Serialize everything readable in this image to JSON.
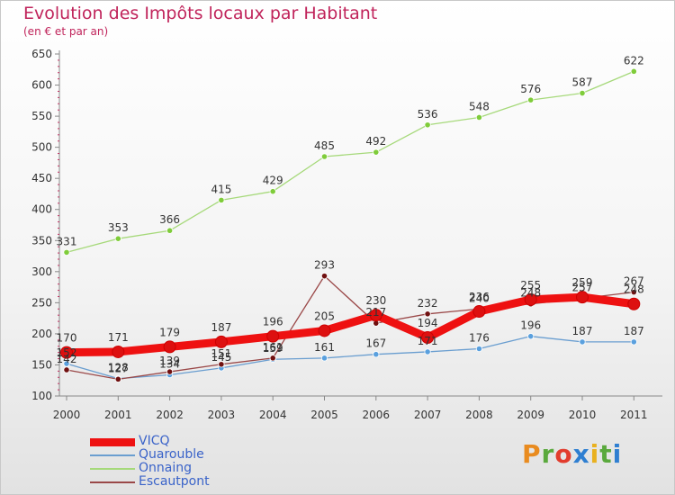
{
  "header": {
    "title": "Evolution des Impôts locaux par Habitant",
    "subtitle": "(en € et par an)"
  },
  "logo": {
    "text": "Proxiti",
    "letters": [
      "P",
      "r",
      "o",
      "x",
      "i",
      "t",
      "i"
    ],
    "colors": [
      "#e98b1f",
      "#5aa93d",
      "#e23c2d",
      "#2f7fd1",
      "#e9b11f",
      "#5aa93d",
      "#2f7fd1"
    ]
  },
  "chart_data": {
    "type": "line",
    "title": "Evolution des Impôts locaux par Habitant",
    "subtitle": "(en € et par an)",
    "xlabel": "",
    "ylabel": "",
    "x": [
      "2000",
      "2001",
      "2002",
      "2003",
      "2004",
      "2005",
      "2006",
      "2007",
      "2008",
      "2009",
      "2010",
      "2011"
    ],
    "ylim": [
      100,
      650
    ],
    "yticks": [
      100,
      150,
      200,
      250,
      300,
      350,
      400,
      450,
      500,
      550,
      600,
      650
    ],
    "grid": false,
    "legend": "bottom-left",
    "series": [
      {
        "name": "VICQ",
        "values": [
          170,
          171,
          179,
          187,
          196,
          205,
          230,
          194,
          236,
          255,
          259,
          248
        ],
        "color": "#ee1111",
        "stroke_style": "thick",
        "marker_fill": "#dd1010",
        "labels": [
          "170",
          "171",
          "179",
          "187",
          "196",
          "205",
          "230",
          "194",
          "236",
          "255",
          "259",
          "248"
        ]
      },
      {
        "name": "Quarouble",
        "values": [
          152,
          128,
          134,
          145,
          159,
          161,
          167,
          171,
          176,
          196,
          187,
          187
        ],
        "color": "#6a9ed0",
        "stroke_style": "thin",
        "marker_fill": "#5aa0de",
        "labels": [
          "152",
          "128",
          "134",
          "145",
          "159",
          "161",
          "167",
          "171",
          "176",
          "196",
          "187",
          "187"
        ]
      },
      {
        "name": "Onnaing",
        "values": [
          331,
          353,
          366,
          415,
          429,
          485,
          492,
          536,
          548,
          576,
          587,
          622
        ],
        "color": "#a6d97a",
        "stroke_style": "thin",
        "marker_fill": "#7fcc3a",
        "labels": [
          "331",
          "353",
          "366",
          "415",
          "429",
          "485",
          "492",
          "536",
          "548",
          "576",
          "587",
          "622"
        ]
      },
      {
        "name": "Escautpont",
        "values": [
          142,
          127,
          139,
          151,
          161,
          293,
          217,
          232,
          240,
          248,
          257,
          267
        ],
        "color": "#9a4848",
        "stroke_style": "thin",
        "marker_fill": "#701010",
        "labels": [
          "142",
          "127",
          "139",
          "151",
          "161",
          "293",
          "217",
          "232",
          "240",
          "248",
          "257",
          "267"
        ]
      }
    ]
  }
}
